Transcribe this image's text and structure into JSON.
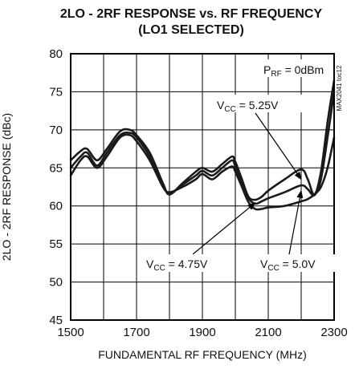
{
  "chart_data": {
    "type": "line",
    "title_line1": "2LO - 2RF RESPONSE vs. RF FREQUENCY",
    "title_line2": "(LO1 SELECTED)",
    "xlabel": "FUNDAMENTAL RF FREQUENCY (MHz)",
    "ylabel": "2LO - 2RF RESPONSE (dBc)",
    "xlim": [
      1500,
      2300
    ],
    "ylim": [
      45,
      80
    ],
    "xticks": [
      "1500",
      "1700",
      "1900",
      "2100",
      "2300"
    ],
    "yticks": [
      "45",
      "50",
      "55",
      "60",
      "65",
      "70",
      "75",
      "80"
    ],
    "grid": true,
    "side_label": "MAX2041 toc12",
    "annotations": {
      "prf": {
        "main": "P",
        "sub": "RF",
        "rest": " = 0dBm"
      },
      "vcc525": {
        "main": "V",
        "sub": "CC",
        "rest": " = 5.25V"
      },
      "vcc475": {
        "main": "V",
        "sub": "CC",
        "rest": " = 4.75V"
      },
      "vcc50": {
        "main": "V",
        "sub": "CC",
        "rest": " = 5.0V"
      }
    },
    "series": [
      {
        "name": "VCC = 4.75V",
        "x": [
          1500,
          1530,
          1550,
          1580,
          1610,
          1650,
          1680,
          1700,
          1740,
          1780,
          1800,
          1840,
          1880,
          1900,
          1930,
          1960,
          1990,
          2000,
          2020,
          2040,
          2060,
          2080,
          2100,
          2150,
          2200,
          2220,
          2240,
          2260,
          2280,
          2300
        ],
        "y": [
          64.0,
          66.0,
          66.5,
          65.0,
          66.5,
          69.0,
          69.3,
          68.5,
          66.0,
          62.5,
          61.8,
          62.5,
          63.5,
          64.2,
          63.5,
          64.5,
          65.2,
          64.5,
          62.5,
          60.5,
          59.6,
          59.6,
          59.8,
          60.0,
          60.6,
          60.9,
          61.5,
          62.5,
          65.0,
          69.0
        ]
      },
      {
        "name": "VCC = 5.0V",
        "x": [
          1500,
          1530,
          1550,
          1580,
          1610,
          1650,
          1680,
          1700,
          1740,
          1780,
          1800,
          1840,
          1880,
          1900,
          1930,
          1960,
          1990,
          2000,
          2020,
          2040,
          2060,
          2080,
          2100,
          2150,
          2200,
          2220,
          2240,
          2260,
          2280,
          2300
        ],
        "y": [
          65.0,
          66.5,
          67.0,
          65.3,
          67.0,
          69.3,
          69.6,
          69.0,
          66.5,
          62.8,
          61.6,
          62.8,
          64.0,
          64.6,
          64.0,
          65.0,
          66.0,
          65.2,
          63.0,
          61.0,
          60.3,
          60.6,
          61.0,
          61.8,
          62.7,
          62.2,
          61.4,
          63.5,
          69.0,
          75.0
        ]
      },
      {
        "name": "VCC = 5.25V",
        "x": [
          1500,
          1530,
          1550,
          1580,
          1610,
          1650,
          1680,
          1700,
          1740,
          1780,
          1800,
          1840,
          1880,
          1900,
          1930,
          1960,
          1990,
          2000,
          2020,
          2040,
          2060,
          2080,
          2100,
          2150,
          2200,
          2220,
          2240,
          2260,
          2280,
          2300
        ],
        "y": [
          66.0,
          67.2,
          67.5,
          66.0,
          67.5,
          69.8,
          70.0,
          69.3,
          67.0,
          63.0,
          61.5,
          63.0,
          64.5,
          65.0,
          64.5,
          65.5,
          66.5,
          65.8,
          63.5,
          61.2,
          60.8,
          61.2,
          62.0,
          63.5,
          64.8,
          63.5,
          61.5,
          64.5,
          71.0,
          76.5
        ]
      }
    ]
  }
}
